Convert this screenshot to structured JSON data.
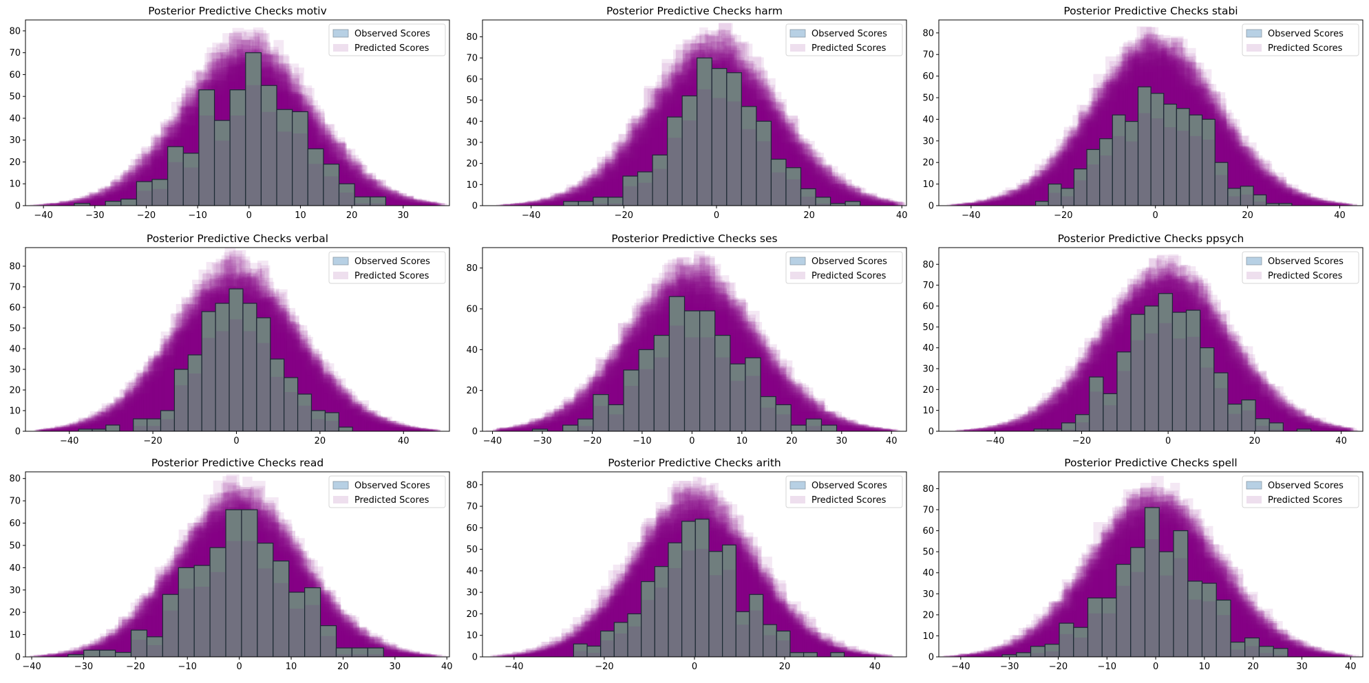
{
  "figure": {
    "colors": {
      "observed_fill": "#b7d0e4",
      "observed_edge": "#1c2a33",
      "observed_overlay": "#71707f",
      "predicted_fill": "#800080",
      "predicted_light": "#eedfee",
      "green_overlap": "#6f8a7e"
    }
  },
  "chart_data": [
    {
      "type": "bar",
      "title": "Posterior Predictive Checks motiv",
      "xlabel": "",
      "ylabel": "",
      "xlim": [
        -43.5,
        39
      ],
      "ylim": [
        0,
        85
      ],
      "xticks": [
        "-40",
        "-30",
        "-20",
        "-10",
        "0",
        "10",
        "20",
        "30"
      ],
      "xtick_values": [
        -40,
        -30,
        -20,
        -10,
        0,
        10,
        20,
        30
      ],
      "yticks": [
        "0",
        "10",
        "20",
        "30",
        "40",
        "50",
        "60",
        "70",
        "80"
      ],
      "ytick_values": [
        0,
        10,
        20,
        30,
        40,
        50,
        60,
        70,
        80
      ],
      "bin_start": -34.0,
      "bin_width": 3.03,
      "observed_counts": [
        1,
        0,
        2,
        3,
        11,
        12,
        27,
        24,
        53,
        39,
        53,
        70,
        55,
        44,
        43,
        26,
        19,
        10,
        4,
        4
      ],
      "predicted_range": [
        -40,
        35.5
      ],
      "predicted_peak": 81,
      "legend": [
        "Observed Scores",
        "Predicted Scores"
      ],
      "legend_position": "upper-right"
    },
    {
      "type": "bar",
      "title": "Posterior Predictive Checks harm",
      "xlabel": "",
      "ylabel": "",
      "xlim": [
        -50.5,
        41
      ],
      "ylim": [
        0,
        88
      ],
      "xticks": [
        "-40",
        "-20",
        "0",
        "20",
        "40"
      ],
      "xtick_values": [
        -40,
        -20,
        0,
        20,
        40
      ],
      "yticks": [
        "0",
        "10",
        "20",
        "30",
        "40",
        "50",
        "60",
        "70",
        "80"
      ],
      "ytick_values": [
        0,
        10,
        20,
        30,
        40,
        50,
        60,
        70,
        80
      ],
      "bin_start": -33.0,
      "bin_width": 3.2,
      "observed_counts": [
        2,
        2,
        4,
        4,
        14,
        16,
        24,
        42,
        52,
        70,
        65,
        63,
        47,
        40,
        22,
        18,
        8,
        4,
        1,
        2
      ],
      "predicted_range": [
        -46,
        38
      ],
      "predicted_peak": 84,
      "legend": [
        "Observed Scores",
        "Predicted Scores"
      ],
      "legend_position": "upper-right"
    },
    {
      "type": "bar",
      "title": "Posterior Predictive Checks stabi",
      "xlabel": "",
      "ylabel": "",
      "xlim": [
        -47,
        45
      ],
      "ylim": [
        0,
        86
      ],
      "xticks": [
        "-40",
        "-20",
        "0",
        "20",
        "40"
      ],
      "xtick_values": [
        -40,
        -20,
        0,
        20,
        40
      ],
      "yticks": [
        "0",
        "10",
        "20",
        "30",
        "40",
        "50",
        "60",
        "70",
        "80"
      ],
      "ytick_values": [
        0,
        10,
        20,
        30,
        40,
        50,
        60,
        70,
        80
      ],
      "bin_start": -26.0,
      "bin_width": 2.78,
      "observed_counts": [
        2,
        10,
        8,
        17,
        26,
        31,
        42,
        39,
        55,
        52,
        47,
        45,
        42,
        40,
        20,
        8,
        9,
        5,
        1,
        1
      ],
      "predicted_range": [
        -43,
        41
      ],
      "predicted_peak": 82,
      "legend": [
        "Observed Scores",
        "Predicted Scores"
      ],
      "legend_position": "upper-right"
    },
    {
      "type": "bar",
      "title": "Posterior Predictive Checks verbal",
      "xlabel": "",
      "ylabel": "",
      "xlim": [
        -50.5,
        51
      ],
      "ylim": [
        0,
        89
      ],
      "xticks": [
        "-40",
        "-20",
        "0",
        "20",
        "40"
      ],
      "xtick_values": [
        -40,
        -20,
        0,
        20,
        40
      ],
      "yticks": [
        "0",
        "10",
        "20",
        "30",
        "40",
        "50",
        "60",
        "70",
        "80"
      ],
      "ytick_values": [
        0,
        10,
        20,
        30,
        40,
        50,
        60,
        70,
        80
      ],
      "bin_start": -37.8,
      "bin_width": 3.28,
      "observed_counts": [
        1,
        1,
        3,
        0,
        6,
        6,
        10,
        30,
        37,
        58,
        62,
        69,
        62,
        55,
        35,
        26,
        18,
        10,
        9,
        2
      ],
      "predicted_range": [
        -46,
        46.5
      ],
      "predicted_peak": 85,
      "legend": [
        "Observed Scores",
        "Predicted Scores"
      ],
      "legend_position": "upper-right"
    },
    {
      "type": "bar",
      "title": "Posterior Predictive Checks ses",
      "xlabel": "",
      "ylabel": "",
      "xlim": [
        -42,
        43
      ],
      "ylim": [
        0,
        90
      ],
      "xticks": [
        "-40",
        "-30",
        "-20",
        "-10",
        "0",
        "10",
        "20",
        "30",
        "40"
      ],
      "xtick_values": [
        -40,
        -30,
        -20,
        -10,
        0,
        10,
        20,
        30,
        40
      ],
      "yticks": [
        "0",
        "20",
        "40",
        "60",
        "80"
      ],
      "ytick_values": [
        0,
        20,
        40,
        60,
        80
      ],
      "bin_start": -32.0,
      "bin_width": 3.05,
      "observed_counts": [
        1,
        0,
        3,
        6,
        18,
        13,
        30,
        40,
        47,
        66,
        59,
        59,
        47,
        33,
        36,
        17,
        13,
        3,
        6,
        3
      ],
      "predicted_range": [
        -38,
        39
      ],
      "predicted_peak": 86,
      "legend": [
        "Observed Scores",
        "Predicted Scores"
      ],
      "legend_position": "upper-right"
    },
    {
      "type": "bar",
      "title": "Posterior Predictive Checks ppsych",
      "xlabel": "",
      "ylabel": "",
      "xlim": [
        -53,
        45
      ],
      "ylim": [
        0,
        88
      ],
      "xticks": [
        "-40",
        "-20",
        "0",
        "20",
        "40"
      ],
      "xtick_values": [
        -40,
        -20,
        0,
        20,
        40
      ],
      "yticks": [
        "0",
        "10",
        "20",
        "30",
        "40",
        "50",
        "60",
        "70",
        "80"
      ],
      "ytick_values": [
        0,
        10,
        20,
        30,
        40,
        50,
        60,
        70,
        80
      ],
      "bin_start": -31.0,
      "bin_width": 3.2,
      "observed_counts": [
        1,
        1,
        4,
        8,
        26,
        18,
        38,
        56,
        60,
        66,
        57,
        58,
        40,
        28,
        13,
        15,
        6,
        4,
        0,
        1
      ],
      "predicted_range": [
        -48,
        41
      ],
      "predicted_peak": 84,
      "legend": [
        "Observed Scores",
        "Predicted Scores"
      ],
      "legend_position": "upper-right"
    },
    {
      "type": "bar",
      "title": "Posterior Predictive Checks read",
      "xlabel": "",
      "ylabel": "",
      "xlim": [
        -41.2,
        40.5
      ],
      "ylim": [
        0,
        83
      ],
      "xticks": [
        "-40",
        "-30",
        "-20",
        "-10",
        "0",
        "10",
        "20",
        "30",
        "40"
      ],
      "xtick_values": [
        -40,
        -30,
        -20,
        -10,
        0,
        10,
        20,
        30,
        40
      ],
      "yticks": [
        "0",
        "10",
        "20",
        "30",
        "40",
        "50",
        "60",
        "70",
        "80"
      ],
      "ytick_values": [
        0,
        10,
        20,
        30,
        40,
        50,
        60,
        70,
        80
      ],
      "bin_start": -33.0,
      "bin_width": 3.04,
      "observed_counts": [
        1,
        3,
        3,
        2,
        12,
        9,
        28,
        40,
        41,
        49,
        66,
        66,
        51,
        43,
        29,
        31,
        14,
        4,
        4,
        4
      ],
      "predicted_range": [
        -37.5,
        37
      ],
      "predicted_peak": 79,
      "legend": [
        "Observed Scores",
        "Predicted Scores"
      ],
      "legend_position": "upper-right"
    },
    {
      "type": "bar",
      "title": "Posterior Predictive Checks arith",
      "xlabel": "",
      "ylabel": "",
      "xlim": [
        -47,
        47
      ],
      "ylim": [
        0,
        86
      ],
      "xticks": [
        "-40",
        "-20",
        "0",
        "20",
        "40"
      ],
      "xtick_values": [
        -40,
        -20,
        0,
        20,
        40
      ],
      "yticks": [
        "0",
        "10",
        "20",
        "30",
        "40",
        "50",
        "60",
        "70",
        "80"
      ],
      "ytick_values": [
        0,
        10,
        20,
        30,
        40,
        50,
        60,
        70,
        80
      ],
      "bin_start": -26.8,
      "bin_width": 3.0,
      "observed_counts": [
        6,
        5,
        12,
        16,
        20,
        35,
        42,
        53,
        63,
        64,
        49,
        52,
        21,
        29,
        15,
        12,
        2,
        2,
        0,
        2
      ],
      "predicted_range": [
        -43,
        42
      ],
      "predicted_peak": 82,
      "legend": [
        "Observed Scores",
        "Predicted Scores"
      ],
      "legend_position": "upper-right"
    },
    {
      "type": "bar",
      "title": "Posterior Predictive Checks spell",
      "xlabel": "",
      "ylabel": "",
      "xlim": [
        -44.5,
        42.5
      ],
      "ylim": [
        0,
        88
      ],
      "xticks": [
        "-40",
        "-30",
        "-20",
        "-10",
        "0",
        "10",
        "20",
        "30",
        "40"
      ],
      "xtick_values": [
        -40,
        -30,
        -20,
        -10,
        0,
        10,
        20,
        30,
        40
      ],
      "yticks": [
        "0",
        "10",
        "20",
        "30",
        "40",
        "50",
        "60",
        "70",
        "80"
      ],
      "ytick_values": [
        0,
        10,
        20,
        30,
        40,
        50,
        60,
        70,
        80
      ],
      "bin_start": -31.5,
      "bin_width": 2.93,
      "observed_counts": [
        1,
        2,
        5,
        6,
        16,
        14,
        28,
        28,
        44,
        52,
        71,
        50,
        60,
        36,
        35,
        27,
        7,
        9,
        5,
        4
      ],
      "predicted_range": [
        -40.5,
        38.5
      ],
      "predicted_peak": 84,
      "legend": [
        "Observed Scores",
        "Predicted Scores"
      ],
      "legend_position": "upper-right"
    }
  ]
}
